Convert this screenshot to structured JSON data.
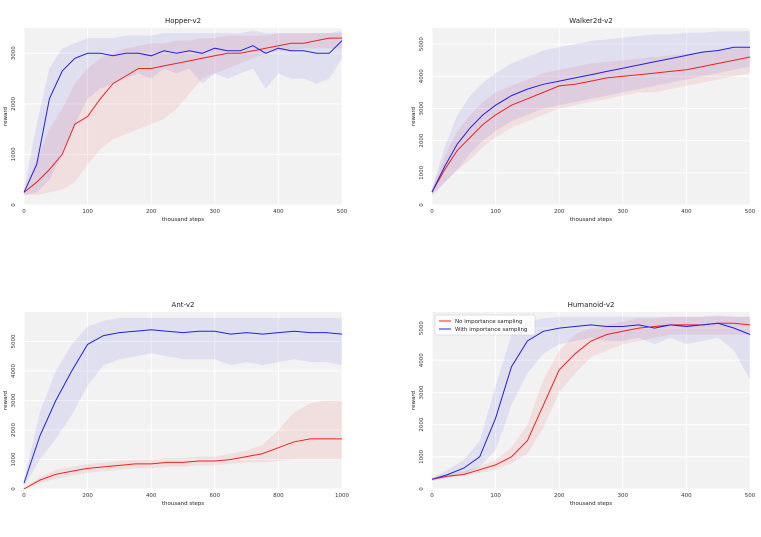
{
  "chart_data": [
    {
      "type": "line",
      "title": "Hopper-v2",
      "xlabel": "thousand steps",
      "ylabel": "reward",
      "xlim": [
        0,
        500
      ],
      "ylim": [
        0,
        3500
      ],
      "xticks": [
        0,
        100,
        200,
        300,
        400,
        500
      ],
      "yticks": [
        0,
        1000,
        2000,
        3000
      ],
      "grid": true,
      "series": [
        {
          "name": "No importance sampling",
          "color": "#ee2222",
          "x": [
            0,
            20,
            40,
            60,
            80,
            100,
            120,
            140,
            160,
            180,
            200,
            220,
            240,
            260,
            280,
            300,
            320,
            340,
            360,
            380,
            400,
            420,
            440,
            460,
            480,
            500
          ],
          "values": [
            250,
            450,
            700,
            1000,
            1600,
            1750,
            2100,
            2400,
            2550,
            2700,
            2700,
            2750,
            2800,
            2850,
            2900,
            2950,
            3000,
            3000,
            3050,
            3100,
            3150,
            3200,
            3200,
            3250,
            3300,
            3300
          ],
          "lower": [
            200,
            200,
            250,
            300,
            450,
            800,
            1100,
            1300,
            1400,
            1500,
            1600,
            1700,
            1900,
            2200,
            2500,
            2600,
            2700,
            2800,
            2900,
            3000,
            3050,
            3050,
            3100,
            3100,
            3100,
            3100
          ],
          "upper": [
            300,
            900,
            1500,
            1900,
            2400,
            2700,
            2900,
            3000,
            3100,
            3150,
            3200,
            3200,
            3250,
            3250,
            3300,
            3300,
            3350,
            3350,
            3350,
            3350,
            3400,
            3400,
            3400,
            3400,
            3400,
            3400
          ]
        },
        {
          "name": "With importance sampling",
          "color": "#2222dd",
          "x": [
            0,
            20,
            40,
            60,
            80,
            100,
            120,
            140,
            160,
            180,
            200,
            220,
            240,
            260,
            280,
            300,
            320,
            340,
            360,
            380,
            400,
            420,
            440,
            460,
            480,
            500
          ],
          "values": [
            250,
            800,
            2100,
            2650,
            2900,
            3000,
            3000,
            2950,
            3000,
            3000,
            2950,
            3050,
            3000,
            3050,
            3000,
            3100,
            3050,
            3050,
            3150,
            3000,
            3100,
            3050,
            3050,
            3000,
            3000,
            3250
          ],
          "lower": [
            200,
            250,
            500,
            1000,
            1600,
            2100,
            2300,
            2400,
            2500,
            2600,
            2500,
            2700,
            2600,
            2700,
            2400,
            2600,
            2500,
            2600,
            2700,
            2300,
            2600,
            2500,
            2500,
            2400,
            2500,
            2900
          ],
          "upper": [
            300,
            1600,
            2700,
            3100,
            3200,
            3300,
            3300,
            3300,
            3350,
            3350,
            3350,
            3400,
            3400,
            3400,
            3400,
            3400,
            3400,
            3400,
            3450,
            3400,
            3400,
            3400,
            3400,
            3400,
            3400,
            3450
          ]
        }
      ]
    },
    {
      "type": "line",
      "title": "Walker2d-v2",
      "xlabel": "thousand steps",
      "ylabel": "reward",
      "xlim": [
        0,
        500
      ],
      "ylim": [
        0,
        5500
      ],
      "xticks": [
        0,
        100,
        200,
        300,
        400,
        500
      ],
      "yticks": [
        0,
        1000,
        2000,
        3000,
        4000,
        5000
      ],
      "grid": true,
      "series": [
        {
          "name": "No importance sampling",
          "color": "#ee2222",
          "x": [
            0,
            20,
            40,
            60,
            80,
            100,
            125,
            150,
            175,
            200,
            225,
            250,
            275,
            300,
            325,
            350,
            375,
            400,
            425,
            450,
            475,
            500
          ],
          "values": [
            400,
            1100,
            1700,
            2100,
            2500,
            2800,
            3100,
            3300,
            3500,
            3700,
            3750,
            3850,
            3950,
            4000,
            4050,
            4100,
            4150,
            4200,
            4300,
            4400,
            4500,
            4600
          ],
          "lower": [
            300,
            700,
            1100,
            1400,
            1800,
            2100,
            2400,
            2600,
            2800,
            3000,
            3100,
            3200,
            3300,
            3400,
            3500,
            3500,
            3600,
            3700,
            3800,
            3900,
            4000,
            4100
          ],
          "upper": [
            500,
            1500,
            2300,
            2800,
            3200,
            3500,
            3700,
            3900,
            4100,
            4200,
            4300,
            4400,
            4450,
            4500,
            4550,
            4600,
            4650,
            4700,
            4750,
            4800,
            4850,
            4900
          ]
        },
        {
          "name": "With importance sampling",
          "color": "#2222dd",
          "x": [
            0,
            20,
            40,
            60,
            80,
            100,
            125,
            150,
            175,
            200,
            225,
            250,
            275,
            300,
            325,
            350,
            375,
            400,
            425,
            450,
            475,
            500
          ],
          "values": [
            400,
            1200,
            1900,
            2400,
            2800,
            3100,
            3400,
            3600,
            3750,
            3850,
            3950,
            4050,
            4150,
            4250,
            4350,
            4450,
            4550,
            4650,
            4750,
            4800,
            4900,
            4900
          ],
          "lower": [
            300,
            700,
            1100,
            1600,
            2000,
            2300,
            2600,
            2800,
            3000,
            3100,
            3200,
            3300,
            3400,
            3500,
            3600,
            3700,
            3800,
            3900,
            4000,
            4100,
            4200,
            4300
          ],
          "upper": [
            500,
            1800,
            2800,
            3400,
            3800,
            4100,
            4400,
            4600,
            4800,
            4900,
            5000,
            5100,
            5150,
            5200,
            5250,
            5300,
            5300,
            5350,
            5350,
            5400,
            5400,
            5400
          ]
        }
      ]
    },
    {
      "type": "line",
      "title": "Ant-v2",
      "xlabel": "thousand steps",
      "ylabel": "reward",
      "xlim": [
        0,
        1000
      ],
      "ylim": [
        0,
        6000
      ],
      "xticks": [
        0,
        200,
        400,
        600,
        800,
        1000
      ],
      "yticks": [
        0,
        1000,
        2000,
        3000,
        4000,
        5000
      ],
      "grid": true,
      "series": [
        {
          "name": "No importance sampling",
          "color": "#ee2222",
          "x": [
            0,
            50,
            100,
            150,
            200,
            250,
            300,
            350,
            400,
            450,
            500,
            550,
            600,
            650,
            700,
            750,
            800,
            850,
            900,
            950,
            1000
          ],
          "values": [
            0,
            300,
            500,
            600,
            700,
            750,
            800,
            850,
            850,
            900,
            900,
            950,
            950,
            1000,
            1100,
            1200,
            1400,
            1600,
            1700,
            1700,
            1700
          ],
          "lower": [
            0,
            200,
            350,
            450,
            550,
            600,
            650,
            700,
            700,
            750,
            750,
            800,
            800,
            850,
            900,
            900,
            950,
            1000,
            1000,
            1000,
            1000
          ],
          "upper": [
            50,
            400,
            650,
            750,
            850,
            900,
            950,
            1000,
            1000,
            1050,
            1050,
            1100,
            1100,
            1200,
            1300,
            1500,
            2000,
            2600,
            2900,
            3000,
            3000
          ]
        },
        {
          "name": "With importance sampling",
          "color": "#2222dd",
          "x": [
            0,
            50,
            100,
            150,
            200,
            250,
            300,
            350,
            400,
            450,
            500,
            550,
            600,
            650,
            700,
            750,
            800,
            850,
            900,
            950,
            1000
          ],
          "values": [
            200,
            1800,
            3000,
            4000,
            4900,
            5200,
            5300,
            5350,
            5400,
            5350,
            5300,
            5350,
            5350,
            5250,
            5300,
            5250,
            5300,
            5350,
            5300,
            5300,
            5250
          ],
          "lower": [
            100,
            1000,
            1700,
            2500,
            3500,
            4200,
            4400,
            4500,
            4600,
            4500,
            4400,
            4400,
            4400,
            4200,
            4300,
            4200,
            4300,
            4400,
            4300,
            4300,
            4200
          ],
          "upper": [
            300,
            2600,
            4000,
            4900,
            5500,
            5700,
            5800,
            5800,
            5800,
            5800,
            5800,
            5800,
            5800,
            5800,
            5800,
            5800,
            5800,
            5800,
            5800,
            5800,
            5800
          ]
        }
      ]
    },
    {
      "type": "line",
      "title": "Humanoid-v2",
      "xlabel": "thousand steps",
      "ylabel": "reward",
      "xlim": [
        0,
        500
      ],
      "ylim": [
        0,
        5500
      ],
      "xticks": [
        0,
        100,
        200,
        300,
        400,
        500
      ],
      "yticks": [
        0,
        1000,
        2000,
        3000,
        4000,
        5000
      ],
      "grid": true,
      "legend_position": "top-left",
      "series": [
        {
          "name": "No importance sampling",
          "color": "#ee2222",
          "x": [
            0,
            25,
            50,
            75,
            100,
            125,
            150,
            175,
            200,
            225,
            250,
            275,
            300,
            325,
            350,
            375,
            400,
            425,
            450,
            475,
            500
          ],
          "values": [
            300,
            400,
            450,
            600,
            750,
            1000,
            1500,
            2600,
            3700,
            4200,
            4600,
            4800,
            4900,
            5000,
            5050,
            5100,
            5100,
            5100,
            5150,
            5150,
            5100
          ],
          "lower": [
            250,
            350,
            400,
            500,
            600,
            800,
            1100,
            1900,
            3000,
            3600,
            4100,
            4300,
            4500,
            4600,
            4700,
            4800,
            4800,
            4800,
            4800,
            4800,
            4800
          ],
          "upper": [
            350,
            450,
            550,
            700,
            900,
            1300,
            2000,
            3400,
            4300,
            4800,
            5000,
            5100,
            5200,
            5300,
            5300,
            5350,
            5350,
            5350,
            5350,
            5350,
            5350
          ]
        },
        {
          "name": "With importance sampling",
          "color": "#2222dd",
          "x": [
            0,
            25,
            50,
            75,
            100,
            125,
            150,
            175,
            200,
            225,
            250,
            275,
            300,
            325,
            350,
            375,
            400,
            425,
            450,
            475,
            500
          ],
          "values": [
            300,
            450,
            650,
            1000,
            2200,
            3800,
            4600,
            4900,
            5000,
            5050,
            5100,
            5050,
            5050,
            5100,
            5000,
            5100,
            5050,
            5100,
            5150,
            5000,
            4800
          ],
          "lower": [
            250,
            350,
            450,
            700,
            1200,
            2600,
            3600,
            4200,
            4500,
            4600,
            4700,
            4600,
            4600,
            4700,
            4500,
            4700,
            4500,
            4600,
            4700,
            4300,
            3400
          ],
          "upper": [
            350,
            600,
            900,
            1500,
            3200,
            4800,
            5200,
            5300,
            5350,
            5350,
            5350,
            5350,
            5350,
            5350,
            5350,
            5350,
            5350,
            5350,
            5400,
            5350,
            5350
          ]
        }
      ]
    }
  ]
}
